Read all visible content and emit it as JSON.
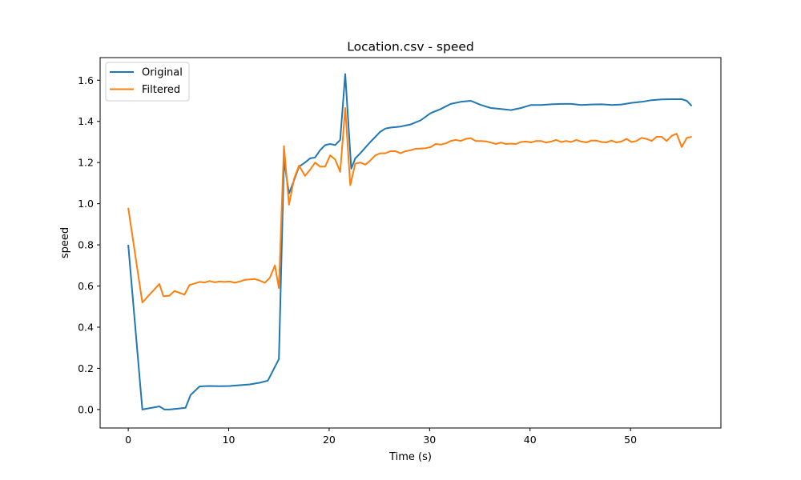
{
  "chart_data": {
    "type": "line",
    "title": "Location.csv - speed",
    "xlabel": "Time (s)",
    "ylabel": "speed",
    "xlim": [
      -2.8,
      59
    ],
    "ylim": [
      -0.09,
      1.71
    ],
    "xticks": [
      0,
      10,
      20,
      30,
      40,
      50
    ],
    "yticks": [
      0.0,
      0.2,
      0.4,
      0.6,
      0.8,
      1.0,
      1.2,
      1.4,
      1.6
    ],
    "ytick_labels": [
      "0.0",
      "0.2",
      "0.4",
      "0.6",
      "0.8",
      "1.0",
      "1.2",
      "1.4",
      "1.6"
    ],
    "grid": false,
    "legend_position": "top-left",
    "series": [
      {
        "name": "Original",
        "color": "#1f77b4",
        "x": [
          0,
          1.4,
          3.1,
          3.6,
          4.1,
          5.0,
          5.7,
          6.2,
          7.1,
          8.1,
          9.1,
          10.1,
          11.1,
          12.1,
          13.1,
          13.9,
          15.0,
          15.5,
          16.0,
          16.4,
          17.0,
          17.6,
          18.1,
          18.6,
          19.1,
          19.6,
          20.1,
          20.6,
          21.1,
          21.6,
          22.2,
          22.6,
          23.1,
          24.1,
          25.1,
          25.6,
          26.1,
          27.1,
          28.1,
          29.1,
          30.1,
          31.1,
          32.1,
          33.1,
          34.1,
          34.6,
          35.1,
          36.1,
          37.1,
          38.1,
          39.1,
          40.1,
          41.1,
          42.1,
          43.1,
          44.1,
          45.1,
          46.1,
          47.1,
          48.1,
          49.1,
          50.1,
          51.1,
          52.1,
          53.1,
          54.1,
          55.1,
          55.6,
          56.1
        ],
        "y": [
          0.8,
          0.0,
          0.015,
          0.0,
          0.0,
          0.004,
          0.008,
          0.07,
          0.112,
          0.114,
          0.113,
          0.114,
          0.118,
          0.122,
          0.13,
          0.14,
          0.245,
          1.21,
          1.05,
          1.1,
          1.18,
          1.2,
          1.22,
          1.225,
          1.26,
          1.285,
          1.29,
          1.285,
          1.31,
          1.63,
          1.17,
          1.22,
          1.245,
          1.3,
          1.35,
          1.365,
          1.37,
          1.375,
          1.385,
          1.405,
          1.44,
          1.46,
          1.485,
          1.495,
          1.5,
          1.49,
          1.48,
          1.465,
          1.46,
          1.455,
          1.465,
          1.48,
          1.48,
          1.483,
          1.485,
          1.485,
          1.48,
          1.482,
          1.483,
          1.48,
          1.482,
          1.49,
          1.495,
          1.503,
          1.507,
          1.508,
          1.508,
          1.5,
          1.475
        ]
      },
      {
        "name": "Filtered",
        "color": "#ff7f0e",
        "x": [
          0,
          1.4,
          3.1,
          3.5,
          4.1,
          4.6,
          5.1,
          5.6,
          6.1,
          6.6,
          7.1,
          7.6,
          8.1,
          8.6,
          9.1,
          9.6,
          10.1,
          10.6,
          11.1,
          11.6,
          12.1,
          12.6,
          13.1,
          13.6,
          14.1,
          14.6,
          15.0,
          15.5,
          16.0,
          16.5,
          17.0,
          17.6,
          18.1,
          18.6,
          19.1,
          19.6,
          20.1,
          20.6,
          21.1,
          21.6,
          22.1,
          22.6,
          23.1,
          23.6,
          24.1,
          24.6,
          25.1,
          25.6,
          26.1,
          26.6,
          27.1,
          27.6,
          28.1,
          28.6,
          29.1,
          29.6,
          30.1,
          30.6,
          31.1,
          31.6,
          32.1,
          32.6,
          33.1,
          33.6,
          34.1,
          34.6,
          35.1,
          35.6,
          36.1,
          36.6,
          37.1,
          37.6,
          38.1,
          38.6,
          39.1,
          39.6,
          40.1,
          40.6,
          41.1,
          41.6,
          42.1,
          42.6,
          43.1,
          43.6,
          44.1,
          44.6,
          45.1,
          45.6,
          46.1,
          46.6,
          47.1,
          47.6,
          48.1,
          48.6,
          49.1,
          49.6,
          50.1,
          50.6,
          51.1,
          51.6,
          52.1,
          52.6,
          53.1,
          53.6,
          54.1,
          54.6,
          55.1,
          55.6,
          56.1
        ],
        "y": [
          0.98,
          0.52,
          0.61,
          0.55,
          0.553,
          0.576,
          0.567,
          0.558,
          0.605,
          0.612,
          0.62,
          0.617,
          0.624,
          0.618,
          0.622,
          0.62,
          0.622,
          0.616,
          0.622,
          0.63,
          0.632,
          0.634,
          0.626,
          0.616,
          0.64,
          0.7,
          0.59,
          1.28,
          0.995,
          1.12,
          1.185,
          1.135,
          1.165,
          1.2,
          1.18,
          1.18,
          1.235,
          1.215,
          1.155,
          1.465,
          1.09,
          1.195,
          1.2,
          1.19,
          1.21,
          1.235,
          1.245,
          1.245,
          1.255,
          1.255,
          1.245,
          1.255,
          1.26,
          1.267,
          1.268,
          1.27,
          1.275,
          1.29,
          1.287,
          1.293,
          1.305,
          1.31,
          1.305,
          1.315,
          1.318,
          1.305,
          1.305,
          1.303,
          1.297,
          1.29,
          1.297,
          1.29,
          1.292,
          1.29,
          1.3,
          1.302,
          1.298,
          1.305,
          1.305,
          1.297,
          1.302,
          1.31,
          1.3,
          1.305,
          1.3,
          1.31,
          1.302,
          1.298,
          1.307,
          1.307,
          1.3,
          1.298,
          1.307,
          1.298,
          1.302,
          1.315,
          1.3,
          1.305,
          1.32,
          1.315,
          1.305,
          1.325,
          1.325,
          1.305,
          1.33,
          1.34,
          1.275,
          1.32,
          1.325
        ]
      }
    ]
  }
}
